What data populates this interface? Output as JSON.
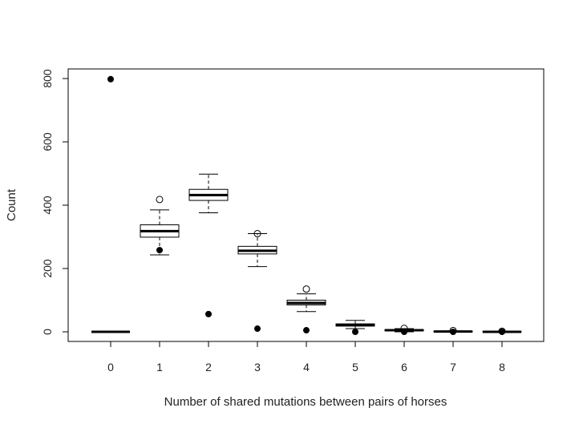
{
  "chart_data": {
    "type": "boxplot",
    "title": "",
    "xlabel": "Number of shared mutations between pairs of horses",
    "ylabel": "Count",
    "ylim": [
      0,
      800
    ],
    "yticks": [
      "0",
      "200",
      "400",
      "600",
      "800"
    ],
    "categories": [
      "0",
      "1",
      "2",
      "3",
      "4",
      "5",
      "6",
      "7",
      "8"
    ],
    "boxes": [
      {
        "x": "0",
        "whisker_low": 0,
        "q1": 0,
        "median": 0,
        "q3": 0,
        "whisker_high": 0,
        "outliers": []
      },
      {
        "x": "1",
        "whisker_low": 243,
        "q1": 299,
        "median": 318,
        "q3": 338,
        "whisker_high": 385,
        "outliers": [
          418
        ]
      },
      {
        "x": "2",
        "whisker_low": 376,
        "q1": 415,
        "median": 432,
        "q3": 450,
        "whisker_high": 498,
        "outliers": []
      },
      {
        "x": "3",
        "whisker_low": 206,
        "q1": 246,
        "median": 256,
        "q3": 270,
        "whisker_high": 310,
        "outliers": [
          310
        ]
      },
      {
        "x": "4",
        "whisker_low": 64,
        "q1": 85,
        "median": 91,
        "q3": 100,
        "whisker_high": 120,
        "outliers": [
          135
        ]
      },
      {
        "x": "5",
        "whisker_low": 10,
        "q1": 18,
        "median": 22,
        "q3": 25,
        "whisker_high": 36,
        "outliers": []
      },
      {
        "x": "6",
        "whisker_low": 0,
        "q1": 3,
        "median": 5,
        "q3": 7,
        "whisker_high": 10,
        "outliers": [
          11
        ]
      },
      {
        "x": "7",
        "whisker_low": 0,
        "q1": 0,
        "median": 1,
        "q3": 2,
        "whisker_high": 3,
        "outliers": [
          4
        ]
      },
      {
        "x": "8",
        "whisker_low": 0,
        "q1": 0,
        "median": 0,
        "q3": 1,
        "whisker_high": 2,
        "outliers": [
          2
        ]
      }
    ],
    "observed_points": [
      {
        "x": "0",
        "value": 798
      },
      {
        "x": "1",
        "value": 258
      },
      {
        "x": "2",
        "value": 56
      },
      {
        "x": "3",
        "value": 10
      },
      {
        "x": "4",
        "value": 5
      },
      {
        "x": "5",
        "value": 0
      },
      {
        "x": "6",
        "value": 0
      },
      {
        "x": "7",
        "value": 0
      },
      {
        "x": "8",
        "value": 0
      }
    ],
    "colors": {
      "stroke": "#000000",
      "background": "#ffffff"
    },
    "grid": false,
    "legend": "none"
  }
}
